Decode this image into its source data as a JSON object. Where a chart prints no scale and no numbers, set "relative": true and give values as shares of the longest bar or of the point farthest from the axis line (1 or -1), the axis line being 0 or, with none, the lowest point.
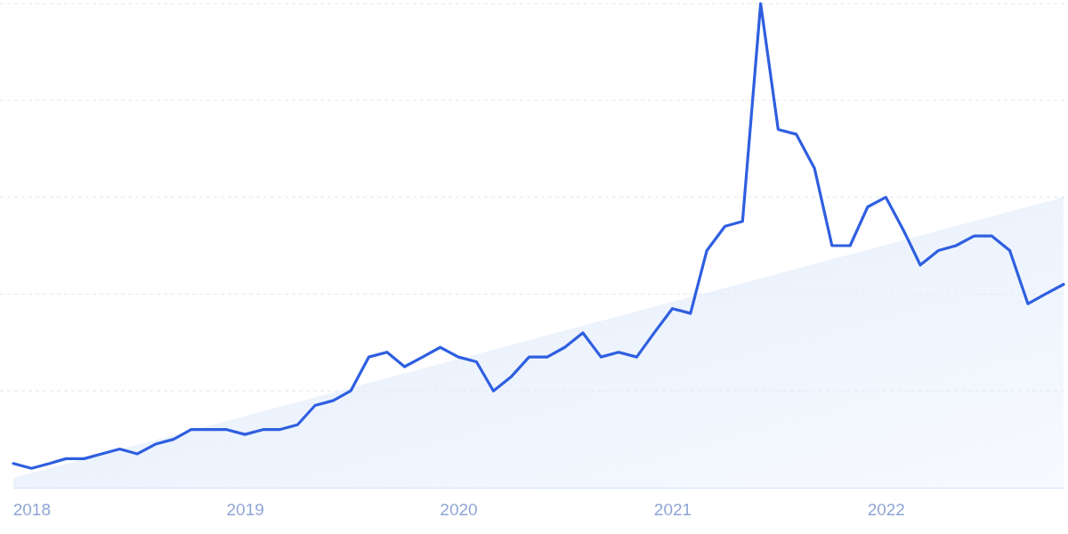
{
  "chart_data": {
    "type": "line",
    "relative": true,
    "x": [
      "2017-12",
      "2018-01",
      "2018-02",
      "2018-03",
      "2018-04",
      "2018-05",
      "2018-06",
      "2018-07",
      "2018-08",
      "2018-09",
      "2018-10",
      "2018-11",
      "2018-12",
      "2019-01",
      "2019-02",
      "2019-03",
      "2019-04",
      "2019-05",
      "2019-06",
      "2019-07",
      "2019-08",
      "2019-09",
      "2019-10",
      "2019-11",
      "2019-12",
      "2020-01",
      "2020-02",
      "2020-03",
      "2020-04",
      "2020-05",
      "2020-06",
      "2020-07",
      "2020-08",
      "2020-09",
      "2020-10",
      "2020-11",
      "2020-12",
      "2021-01",
      "2021-02",
      "2021-03",
      "2021-04",
      "2021-05",
      "2021-06",
      "2021-07",
      "2021-08",
      "2021-09",
      "2021-10",
      "2021-11",
      "2021-12",
      "2022-01",
      "2022-02",
      "2022-03",
      "2022-04",
      "2022-05",
      "2022-06",
      "2022-07",
      "2022-08",
      "2022-09",
      "2022-10",
      "2022-11"
    ],
    "xlim": [
      "2017-12",
      "2022-11"
    ],
    "xticks": [
      {
        "value": "2018",
        "label": "2018"
      },
      {
        "value": "2019",
        "label": "2019"
      },
      {
        "value": "2020",
        "label": "2020"
      },
      {
        "value": "2021",
        "label": "2021"
      },
      {
        "value": "2022",
        "label": "2022"
      }
    ],
    "grid": "y",
    "series": [
      {
        "type": "area",
        "color": "#e3edfc",
        "x": [
          "2017-12",
          "2022-11"
        ],
        "values": [
          0.02,
          0.6
        ]
      },
      {
        "color": "#2f5fe0",
        "values": [
          0.05,
          0.04,
          0.05,
          0.06,
          0.06,
          0.07,
          0.08,
          0.07,
          0.09,
          0.1,
          0.12,
          0.12,
          0.12,
          0.11,
          0.12,
          0.12,
          0.13,
          0.17,
          0.18,
          0.2,
          0.27,
          0.28,
          0.25,
          0.27,
          0.29,
          0.27,
          0.26,
          0.2,
          0.23,
          0.27,
          0.27,
          0.29,
          0.32,
          0.27,
          0.28,
          0.27,
          0.32,
          0.37,
          0.36,
          0.49,
          0.54,
          0.55,
          1,
          0.74,
          0.73,
          0.66,
          0.5,
          0.5,
          0.58,
          0.6,
          0.53,
          0.46,
          0.49,
          0.5,
          0.52,
          0.52,
          0.49,
          0.38,
          0.4,
          0.42
        ]
      }
    ]
  }
}
